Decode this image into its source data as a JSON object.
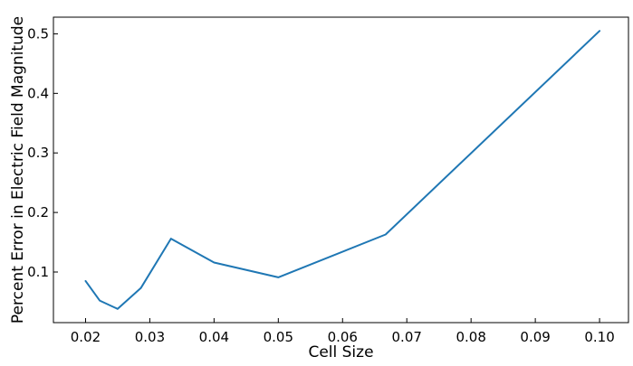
{
  "chart_data": {
    "type": "line",
    "title": "",
    "xlabel": "Cell Size",
    "ylabel": "Percent Error in Electric Field Magnitude",
    "xlim": [
      0.015,
      0.1045
    ],
    "ylim": [
      0.015,
      0.528
    ],
    "xticks": [
      0.02,
      0.03,
      0.04,
      0.05,
      0.06,
      0.07,
      0.08,
      0.09,
      0.1
    ],
    "xtick_labels": [
      "0.02",
      "0.03",
      "0.04",
      "0.05",
      "0.06",
      "0.07",
      "0.08",
      "0.09",
      "0.10"
    ],
    "yticks": [
      0.1,
      0.2,
      0.3,
      0.4,
      0.5
    ],
    "ytick_labels": [
      "0.1",
      "0.2",
      "0.3",
      "0.4",
      "0.5"
    ],
    "grid": false,
    "legend": "none",
    "series": [
      {
        "color": "#1f77b4",
        "x": [
          0.02,
          0.0222,
          0.025,
          0.0286,
          0.0333,
          0.04,
          0.05,
          0.0667,
          0.1
        ],
        "y": [
          0.085,
          0.052,
          0.038,
          0.073,
          0.156,
          0.116,
          0.091,
          0.163,
          0.505
        ]
      }
    ]
  }
}
